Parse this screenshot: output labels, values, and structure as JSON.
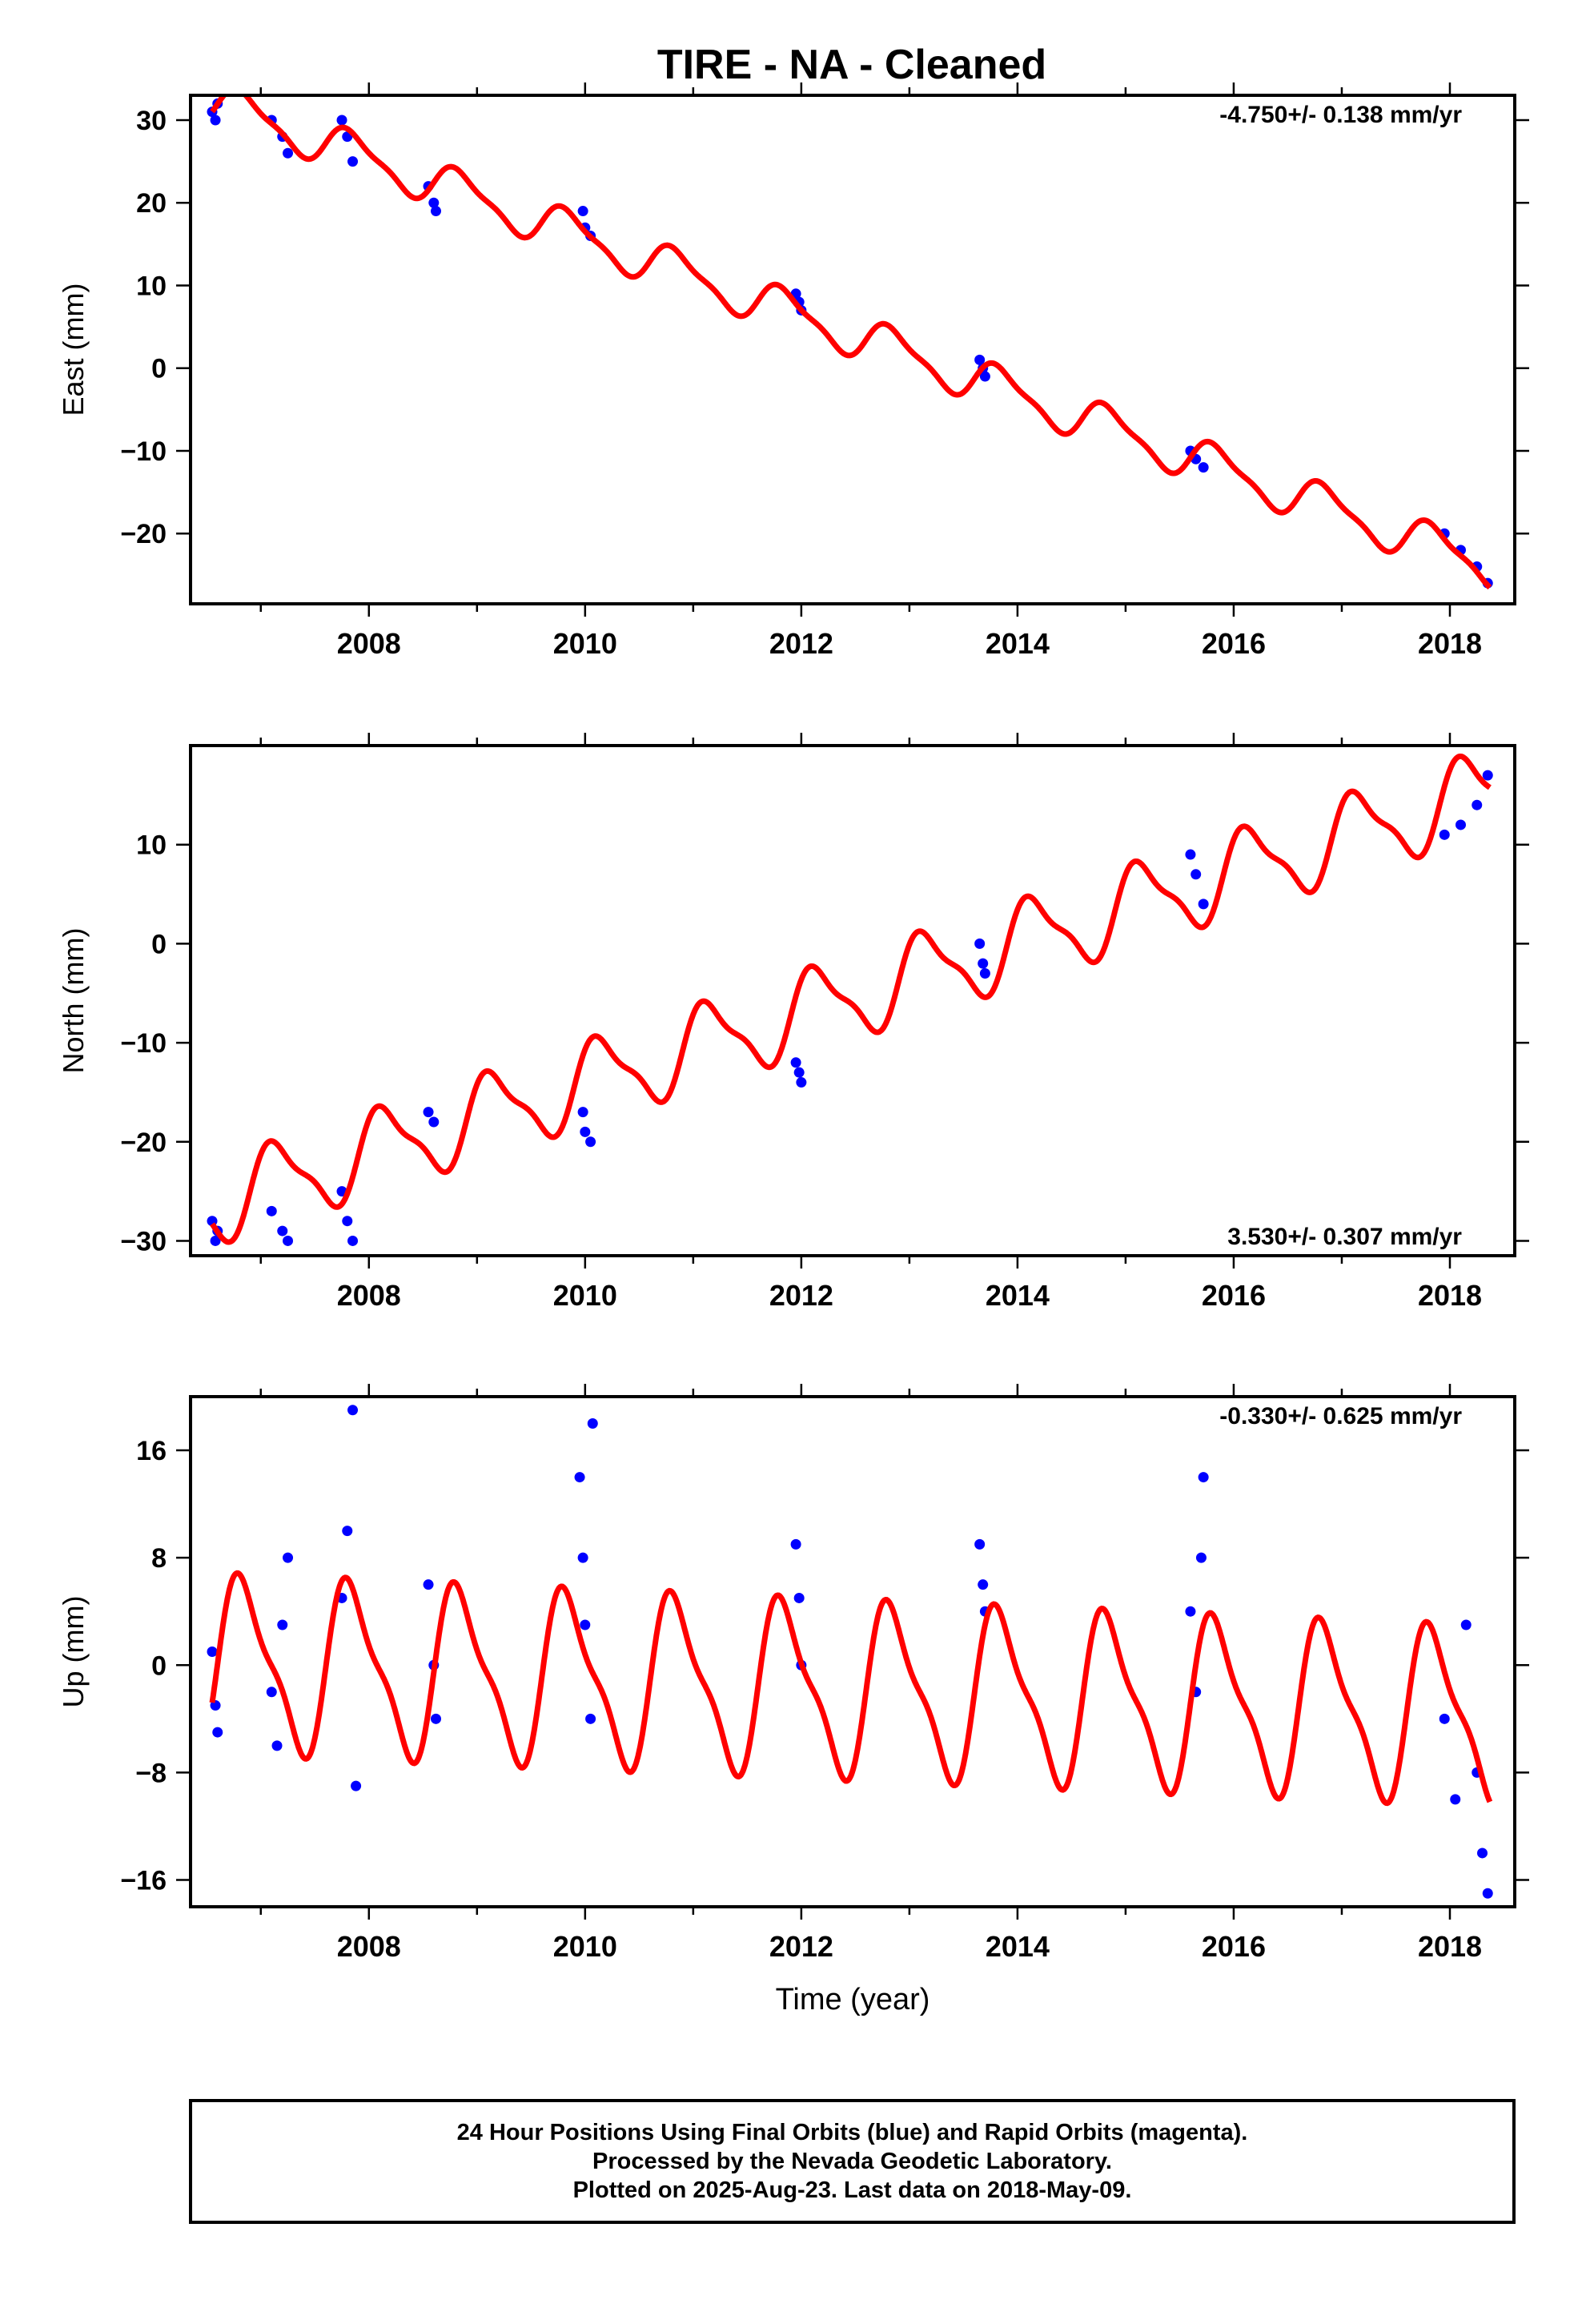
{
  "title": "TIRE  - NA - Cleaned",
  "footer": {
    "line1": "24 Hour Positions Using Final Orbits (blue) and Rapid Orbits (magenta).",
    "line2": "Processed by the Nevada Geodetic Laboratory.",
    "line3": "Plotted on 2025-Aug-23. Last data on 2018-May-09."
  },
  "colors": {
    "data_points": "#0000ff",
    "model_fit": "#ff0000",
    "axes": "#000000"
  },
  "chart_data": [
    {
      "type": "scatter",
      "name": "east",
      "ylabel": "East (mm)",
      "xlabel": "",
      "rate_label": "-4.750+/- 0.138 mm/yr",
      "xlim": [
        2006.35,
        2018.6
      ],
      "ylim": [
        -28.5,
        33
      ],
      "yticks": [
        -20,
        -10,
        0,
        10,
        20,
        30
      ],
      "xticks": [
        2008,
        2010,
        2012,
        2014,
        2016,
        2018
      ],
      "fit": {
        "slope": -4.75,
        "intercept_at_2006": 34.8,
        "annual_amp": 2.4,
        "phase_year": 2006.6
      },
      "observations": [
        {
          "x": 2006.55,
          "y": 31
        },
        {
          "x": 2006.58,
          "y": 30
        },
        {
          "x": 2006.6,
          "y": 32
        },
        {
          "x": 2007.1,
          "y": 30
        },
        {
          "x": 2007.2,
          "y": 28
        },
        {
          "x": 2007.25,
          "y": 26
        },
        {
          "x": 2007.75,
          "y": 30
        },
        {
          "x": 2007.8,
          "y": 28
        },
        {
          "x": 2007.85,
          "y": 25
        },
        {
          "x": 2008.55,
          "y": 22
        },
        {
          "x": 2008.6,
          "y": 20
        },
        {
          "x": 2008.62,
          "y": 19
        },
        {
          "x": 2009.98,
          "y": 19
        },
        {
          "x": 2010.0,
          "y": 17
        },
        {
          "x": 2010.05,
          "y": 16
        },
        {
          "x": 2011.95,
          "y": 9
        },
        {
          "x": 2011.98,
          "y": 8
        },
        {
          "x": 2012.0,
          "y": 7
        },
        {
          "x": 2013.65,
          "y": 1
        },
        {
          "x": 2013.68,
          "y": 0
        },
        {
          "x": 2013.7,
          "y": -1
        },
        {
          "x": 2015.6,
          "y": -10
        },
        {
          "x": 2015.65,
          "y": -11
        },
        {
          "x": 2015.72,
          "y": -12
        },
        {
          "x": 2017.95,
          "y": -20
        },
        {
          "x": 2018.1,
          "y": -22
        },
        {
          "x": 2018.25,
          "y": -24
        },
        {
          "x": 2018.35,
          "y": -26
        }
      ]
    },
    {
      "type": "scatter",
      "name": "north",
      "ylabel": "North (mm)",
      "xlabel": "",
      "rate_label": "3.530+/- 0.307 mm/yr",
      "xlim": [
        2006.35,
        2018.6
      ],
      "ylim": [
        -31.5,
        20
      ],
      "yticks": [
        -30,
        -20,
        -10,
        0,
        10
      ],
      "xticks": [
        2008,
        2010,
        2012,
        2014,
        2016,
        2018
      ],
      "fit": {
        "slope": 3.53,
        "intercept_at_2006": -28.2,
        "annual_amp": 3.9,
        "phase_year": 2006.9
      },
      "observations": [
        {
          "x": 2006.55,
          "y": -28
        },
        {
          "x": 2006.58,
          "y": -30
        },
        {
          "x": 2006.6,
          "y": -29
        },
        {
          "x": 2007.1,
          "y": -27
        },
        {
          "x": 2007.2,
          "y": -29
        },
        {
          "x": 2007.25,
          "y": -30
        },
        {
          "x": 2007.75,
          "y": -25
        },
        {
          "x": 2007.8,
          "y": -28
        },
        {
          "x": 2007.85,
          "y": -30
        },
        {
          "x": 2008.55,
          "y": -17
        },
        {
          "x": 2008.6,
          "y": -18
        },
        {
          "x": 2009.98,
          "y": -17
        },
        {
          "x": 2010.0,
          "y": -19
        },
        {
          "x": 2010.05,
          "y": -20
        },
        {
          "x": 2011.95,
          "y": -12
        },
        {
          "x": 2011.98,
          "y": -13
        },
        {
          "x": 2012.0,
          "y": -14
        },
        {
          "x": 2013.65,
          "y": 0
        },
        {
          "x": 2013.68,
          "y": -2
        },
        {
          "x": 2013.7,
          "y": -3
        },
        {
          "x": 2015.6,
          "y": 9
        },
        {
          "x": 2015.65,
          "y": 7
        },
        {
          "x": 2015.72,
          "y": 4
        },
        {
          "x": 2017.95,
          "y": 11
        },
        {
          "x": 2018.1,
          "y": 12
        },
        {
          "x": 2018.25,
          "y": 14
        },
        {
          "x": 2018.35,
          "y": 17
        }
      ]
    },
    {
      "type": "scatter",
      "name": "up",
      "ylabel": "Up (mm)",
      "xlabel": "Time (year)",
      "rate_label": "-0.330+/- 0.625 mm/yr",
      "xlim": [
        2006.35,
        2018.6
      ],
      "ylim": [
        -18,
        20
      ],
      "yticks": [
        -16,
        -8,
        0,
        8,
        16
      ],
      "xticks": [
        2008,
        2010,
        2012,
        2014,
        2016,
        2018
      ],
      "fit": {
        "slope": -0.33,
        "intercept_at_2006": 0.3,
        "annual_amp": 6.0,
        "phase_year": 2006.6
      },
      "observations": [
        {
          "x": 2006.55,
          "y": 1
        },
        {
          "x": 2006.58,
          "y": -3
        },
        {
          "x": 2006.6,
          "y": -5
        },
        {
          "x": 2007.1,
          "y": -2
        },
        {
          "x": 2007.15,
          "y": -6
        },
        {
          "x": 2007.2,
          "y": 3
        },
        {
          "x": 2007.25,
          "y": 8
        },
        {
          "x": 2007.75,
          "y": 5
        },
        {
          "x": 2007.8,
          "y": 10
        },
        {
          "x": 2007.85,
          "y": 19
        },
        {
          "x": 2007.88,
          "y": -9
        },
        {
          "x": 2008.55,
          "y": 6
        },
        {
          "x": 2008.6,
          "y": 0
        },
        {
          "x": 2008.62,
          "y": -4
        },
        {
          "x": 2009.95,
          "y": 14
        },
        {
          "x": 2009.98,
          "y": 8
        },
        {
          "x": 2010.0,
          "y": 3
        },
        {
          "x": 2010.05,
          "y": -4
        },
        {
          "x": 2010.07,
          "y": 18
        },
        {
          "x": 2011.95,
          "y": 9
        },
        {
          "x": 2011.98,
          "y": 5
        },
        {
          "x": 2012.0,
          "y": 0
        },
        {
          "x": 2013.65,
          "y": 9
        },
        {
          "x": 2013.68,
          "y": 6
        },
        {
          "x": 2013.7,
          "y": 4
        },
        {
          "x": 2015.6,
          "y": 4
        },
        {
          "x": 2015.65,
          "y": -2
        },
        {
          "x": 2015.7,
          "y": 8
        },
        {
          "x": 2015.72,
          "y": 14
        },
        {
          "x": 2017.95,
          "y": -4
        },
        {
          "x": 2018.05,
          "y": -10
        },
        {
          "x": 2018.15,
          "y": 3
        },
        {
          "x": 2018.25,
          "y": -8
        },
        {
          "x": 2018.3,
          "y": -14
        },
        {
          "x": 2018.35,
          "y": -17
        }
      ]
    }
  ]
}
